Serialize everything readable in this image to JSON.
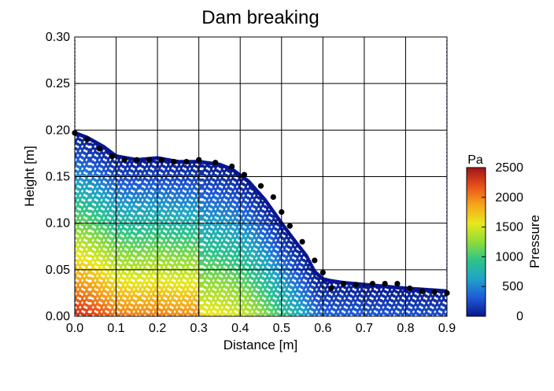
{
  "chart_data": {
    "type": "scatter",
    "title": "Dam breaking",
    "xlabel": "Distance [m]",
    "ylabel": "Height [m]",
    "xlim": [
      0.0,
      0.9
    ],
    "ylim": [
      0.0,
      0.3
    ],
    "x_ticks": [
      "0.0",
      "0.1",
      "0.2",
      "0.3",
      "0.4",
      "0.5",
      "0.6",
      "0.7",
      "0.8",
      "0.9"
    ],
    "y_ticks": [
      "0.00",
      "0.05",
      "0.10",
      "0.15",
      "0.20",
      "0.25",
      "0.30"
    ],
    "grid": true,
    "colorbar": {
      "label": "Pressure",
      "unit": "Pa",
      "range": [
        0,
        2500
      ],
      "ticks": [
        "0",
        "500",
        "1000",
        "1500",
        "2000",
        "2500"
      ],
      "colormap": [
        "#08188a",
        "#1f5ad8",
        "#1fa3c8",
        "#2bc48a",
        "#8edc3a",
        "#e8e81c",
        "#f6a51a",
        "#e8501a",
        "#a0141a"
      ]
    },
    "particle_surface": {
      "x": [
        0.0,
        0.03,
        0.07,
        0.1,
        0.15,
        0.2,
        0.25,
        0.3,
        0.35,
        0.38,
        0.42,
        0.46,
        0.5,
        0.53,
        0.56,
        0.58,
        0.6,
        0.62,
        0.65,
        0.7,
        0.8,
        0.9
      ],
      "y": [
        0.197,
        0.192,
        0.182,
        0.172,
        0.168,
        0.17,
        0.166,
        0.166,
        0.163,
        0.158,
        0.145,
        0.125,
        0.1,
        0.082,
        0.065,
        0.048,
        0.04,
        0.038,
        0.036,
        0.034,
        0.03,
        0.027
      ]
    },
    "series": [
      {
        "name": "",
        "marker": "black-dot",
        "x": [
          0.0,
          0.03,
          0.06,
          0.09,
          0.12,
          0.15,
          0.18,
          0.21,
          0.24,
          0.27,
          0.3,
          0.34,
          0.38,
          0.41,
          0.45,
          0.48,
          0.5,
          0.52,
          0.55,
          0.58,
          0.6,
          0.62,
          0.65,
          0.68,
          0.72,
          0.75,
          0.78,
          0.81,
          0.84,
          0.87,
          0.9
        ],
        "y": [
          0.197,
          0.19,
          0.18,
          0.172,
          0.168,
          0.168,
          0.168,
          0.168,
          0.166,
          0.166,
          0.168,
          0.165,
          0.161,
          0.152,
          0.14,
          0.128,
          0.112,
          0.097,
          0.08,
          0.06,
          0.047,
          0.03,
          0.035,
          0.034,
          0.035,
          0.035,
          0.035,
          0.03,
          0.027,
          0.026,
          0.025
        ]
      }
    ]
  }
}
